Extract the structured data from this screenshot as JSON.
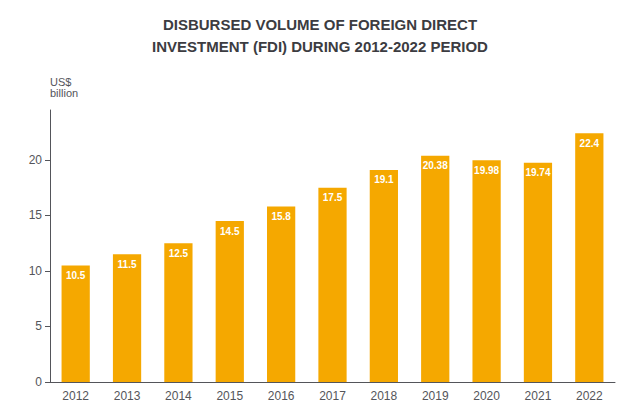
{
  "chart_data": {
    "type": "bar",
    "title": "DISBURSED VOLUME OF FOREIGN DIRECT\nINVESTMENT (FDI) DURING 2012-2022 PERIOD",
    "ylabel": "US$\nbillion",
    "categories": [
      "2012",
      "2013",
      "2014",
      "2015",
      "2016",
      "2017",
      "2018",
      "2019",
      "2020",
      "2021",
      "2022"
    ],
    "values": [
      10.5,
      11.5,
      12.5,
      14.5,
      15.8,
      17.5,
      19.1,
      20.38,
      19.98,
      19.74,
      22.4
    ],
    "color": "#F5A800",
    "ylim": [
      0,
      24.5
    ],
    "yticks": [
      0,
      5,
      10,
      15,
      20
    ],
    "grid": false,
    "data_labels": true
  }
}
